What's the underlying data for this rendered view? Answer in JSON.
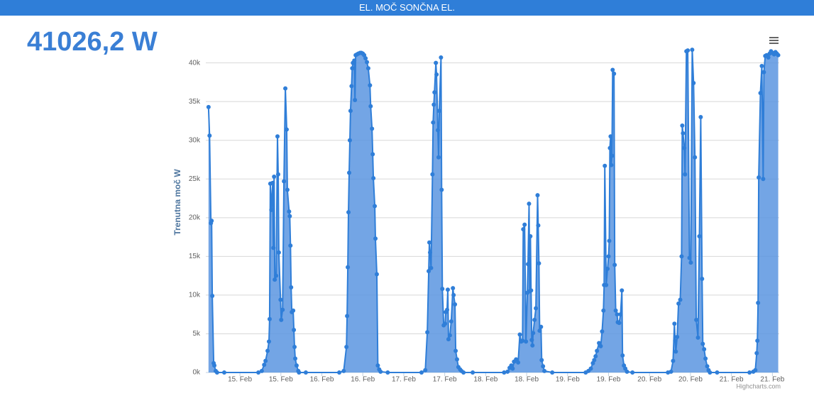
{
  "header": {
    "title": "EL. MOČ SONČNA EL."
  },
  "current_value": "41026,2 W",
  "chart_data": {
    "type": "area",
    "ylabel": "Trenutna moč W",
    "credits": "Highcharts.com",
    "color": "#2f7ed8",
    "fill": "#5b95e0",
    "grid": true,
    "xlim": [
      -10,
      158
    ],
    "ylim": [
      0,
      44000
    ],
    "xticks": [
      {
        "value": 0,
        "label": "15. Feb"
      },
      {
        "value": 12,
        "label": "15. Feb"
      },
      {
        "value": 24,
        "label": "16. Feb"
      },
      {
        "value": 36,
        "label": "16. Feb"
      },
      {
        "value": 48,
        "label": "17. Feb"
      },
      {
        "value": 60,
        "label": "17. Feb"
      },
      {
        "value": 72,
        "label": "18. Feb"
      },
      {
        "value": 84,
        "label": "18. Feb"
      },
      {
        "value": 96,
        "label": "19. Feb"
      },
      {
        "value": 108,
        "label": "19. Feb"
      },
      {
        "value": 120,
        "label": "20. Feb"
      },
      {
        "value": 132,
        "label": "20. Feb"
      },
      {
        "value": 144,
        "label": "21. Feb"
      },
      {
        "value": 156,
        "label": "21. Feb"
      }
    ],
    "yticks": [
      {
        "value": 0,
        "label": "0k"
      },
      {
        "value": 5000,
        "label": "5k"
      },
      {
        "value": 10000,
        "label": "10k"
      },
      {
        "value": 15000,
        "label": "15k"
      },
      {
        "value": 20000,
        "label": "20k"
      },
      {
        "value": 25000,
        "label": "25k"
      },
      {
        "value": 30000,
        "label": "30k"
      },
      {
        "value": 35000,
        "label": "35k"
      },
      {
        "value": 40000,
        "label": "40k"
      }
    ],
    "x": [
      -9.2,
      -8.9,
      -8.5,
      -8.3,
      -8.1,
      -7.7,
      -7.5,
      -7.1,
      -6.7,
      -4.6,
      5.4,
      6.4,
      7.1,
      7.5,
      8.1,
      8.5,
      8.7,
      8.9,
      9.2,
      9.6,
      9.8,
      10.0,
      10.2,
      10.6,
      11.0,
      11.2,
      11.4,
      11.9,
      12.1,
      12.5,
      12.9,
      13.3,
      13.7,
      13.9,
      14.4,
      14.6,
      14.8,
      15.0,
      15.2,
      15.6,
      15.8,
      16.0,
      16.2,
      16.6,
      17.1,
      17.3,
      19.3,
      29.1,
      30.4,
      31.2,
      31.4,
      31.6,
      31.8,
      32.0,
      32.2,
      32.4,
      32.7,
      32.9,
      33.1,
      33.5,
      33.7,
      33.9,
      34.3,
      34.7,
      35.2,
      35.6,
      36.0,
      36.4,
      36.8,
      37.2,
      37.6,
      38.1,
      38.3,
      38.7,
      38.9,
      39.1,
      39.5,
      39.7,
      40.1,
      40.4,
      40.8,
      41.2,
      43.3,
      53.2,
      54.3,
      54.9,
      55.3,
      55.5,
      55.7,
      56.0,
      56.4,
      56.6,
      56.8,
      57.0,
      57.4,
      57.6,
      58.0,
      58.2,
      58.4,
      58.9,
      59.1,
      59.3,
      59.7,
      60.1,
      60.3,
      60.7,
      60.9,
      61.1,
      61.5,
      61.9,
      62.4,
      62.6,
      63.0,
      63.2,
      63.6,
      64.0,
      64.5,
      64.9,
      65.5,
      68.2,
      77.4,
      78.4,
      79.0,
      79.5,
      79.9,
      80.3,
      80.9,
      81.5,
      82.0,
      82.4,
      82.8,
      83.0,
      83.4,
      83.8,
      84.2,
      84.4,
      84.7,
      84.9,
      85.1,
      85.3,
      85.5,
      85.7,
      85.9,
      86.3,
      86.7,
      87.2,
      87.4,
      87.6,
      87.8,
      88.2,
      88.4,
      88.8,
      89.2,
      91.5,
      101.3,
      102.1,
      102.8,
      103.4,
      103.8,
      104.2,
      104.6,
      105.2,
      105.7,
      106.1,
      106.5,
      106.7,
      106.9,
      107.3,
      107.7,
      108.0,
      108.2,
      108.4,
      108.6,
      108.8,
      109.0,
      109.2,
      109.6,
      109.8,
      110.1,
      110.5,
      110.7,
      111.1,
      111.5,
      111.9,
      112.1,
      112.5,
      112.9,
      113.4,
      115.0,
      125.4,
      126.3,
      126.9,
      127.3,
      127.5,
      127.7,
      128.1,
      128.5,
      129.0,
      129.4,
      129.6,
      129.8,
      130.2,
      130.4,
      130.8,
      131.2,
      131.7,
      132.1,
      132.5,
      132.9,
      133.3,
      133.7,
      134.2,
      134.6,
      135.0,
      135.4,
      135.6,
      136.0,
      136.4,
      136.9,
      137.3,
      137.7,
      139.8,
      149.3,
      150.4,
      151.0,
      151.4,
      151.6,
      151.8,
      152.0,
      152.5,
      152.9,
      153.3,
      153.5,
      153.9,
      154.3,
      154.8,
      155.2,
      155.6,
      156.0,
      156.5,
      156.9,
      157.3,
      157.7
    ],
    "values": [
      34300,
      30600,
      19300,
      19600,
      9900,
      1200,
      900,
      200,
      0,
      0,
      0,
      200,
      1000,
      1500,
      2800,
      4000,
      6900,
      24400,
      21000,
      24500,
      16100,
      25300,
      12000,
      12500,
      30500,
      25600,
      15500,
      9400,
      6800,
      8100,
      24700,
      36700,
      31400,
      23600,
      20800,
      20200,
      16400,
      11000,
      7800,
      8000,
      5500,
      3300,
      1800,
      900,
      200,
      0,
      0,
      0,
      200,
      3300,
      7300,
      13600,
      20700,
      25800,
      30000,
      33800,
      37000,
      39300,
      40000,
      40300,
      35200,
      41000,
      41100,
      41200,
      41300,
      41300,
      41200,
      41000,
      40600,
      40100,
      39300,
      37100,
      34400,
      31500,
      28200,
      25100,
      21500,
      17300,
      12700,
      900,
      400,
      100,
      0,
      0,
      300,
      5200,
      13100,
      16800,
      15500,
      13500,
      25600,
      32300,
      34600,
      36200,
      40000,
      38500,
      31300,
      27800,
      33800,
      40700,
      23600,
      10800,
      6100,
      6300,
      7800,
      8100,
      10700,
      4300,
      4800,
      6600,
      10900,
      10000,
      8800,
      2800,
      1700,
      700,
      400,
      200,
      0,
      0,
      0,
      100,
      600,
      900,
      500,
      1400,
      1700,
      1300,
      4900,
      4000,
      4100,
      18500,
      19100,
      4000,
      10300,
      14000,
      21800,
      10500,
      17600,
      10600,
      4200,
      3500,
      5100,
      6800,
      8300,
      22900,
      19000,
      14100,
      5400,
      5900,
      1600,
      800,
      200,
      0,
      0,
      200,
      500,
      1200,
      1600,
      2100,
      2800,
      3800,
      3400,
      5300,
      8000,
      11300,
      26700,
      11300,
      13400,
      15000,
      17000,
      29000,
      30500,
      26800,
      28000,
      39100,
      38600,
      13900,
      8000,
      7500,
      6500,
      6400,
      7500,
      10600,
      2200,
      900,
      500,
      100,
      0,
      0,
      100,
      1500,
      6300,
      4100,
      2700,
      4600,
      8900,
      9400,
      15000,
      31900,
      30900,
      29000,
      25600,
      41500,
      41600,
      14800,
      14200,
      41700,
      37400,
      27800,
      6800,
      4500,
      17600,
      33000,
      12100,
      3700,
      3000,
      1800,
      800,
      300,
      0,
      0,
      0,
      100,
      300,
      2500,
      4100,
      9000,
      25200,
      36100,
      39600,
      25000,
      38800,
      40900,
      41000,
      40700,
      41200,
      41500,
      41300,
      41100,
      41400,
      41200,
      41000
    ]
  }
}
